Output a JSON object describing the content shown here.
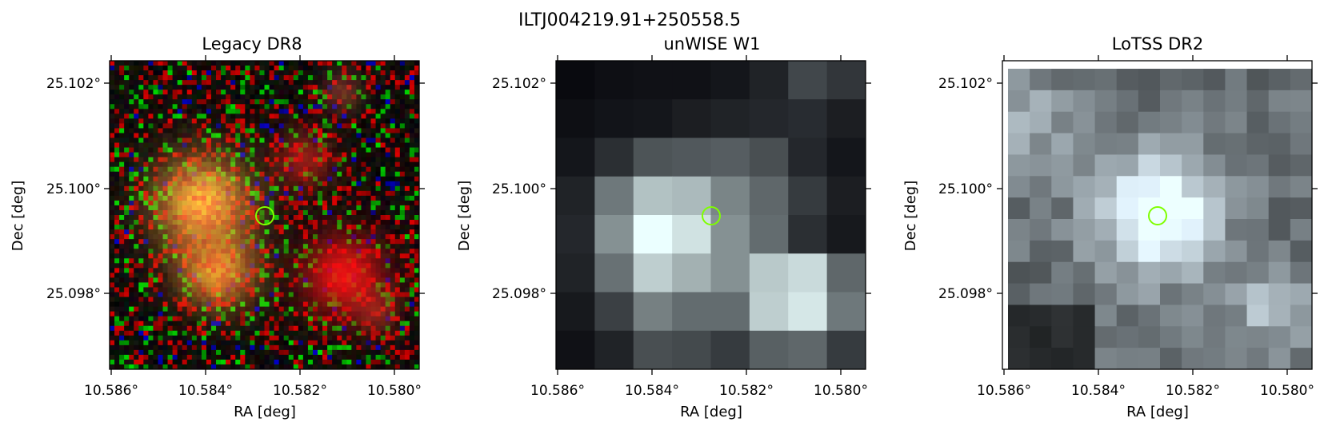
{
  "figure": {
    "suptitle": "ILTJ004219.91+250558.5"
  },
  "panels": [
    {
      "title": "Legacy DR8",
      "xlabel": "RA [deg]",
      "ylabel": "Dec [deg]",
      "xticks": [
        "10.586°",
        "10.584°",
        "10.582°",
        "10.580°"
      ],
      "yticks": [
        "25.102°",
        "25.100°",
        "25.098°"
      ],
      "image_kind": "rgb-optical",
      "marker_color": "#7fff00"
    },
    {
      "title": "unWISE W1",
      "xlabel": "RA [deg]",
      "ylabel": "Dec [deg]",
      "xticks": [
        "10.586°",
        "10.584°",
        "10.582°",
        "10.580°"
      ],
      "yticks": [
        "25.102°",
        "25.100°",
        "25.098°"
      ],
      "image_kind": "greyscale-infrared",
      "marker_color": "#7fff00"
    },
    {
      "title": "LoTSS DR2",
      "xlabel": "RA [deg]",
      "ylabel": "Dec [deg]",
      "xticks": [
        "10.586°",
        "10.584°",
        "10.582°",
        "10.580°"
      ],
      "yticks": [
        "25.102°",
        "25.100°",
        "25.098°"
      ],
      "image_kind": "greyscale-radio",
      "marker_color": "#7fff00"
    }
  ],
  "colors": {
    "marker": "#7fff00",
    "axis": "#000000",
    "background": "#ffffff"
  }
}
